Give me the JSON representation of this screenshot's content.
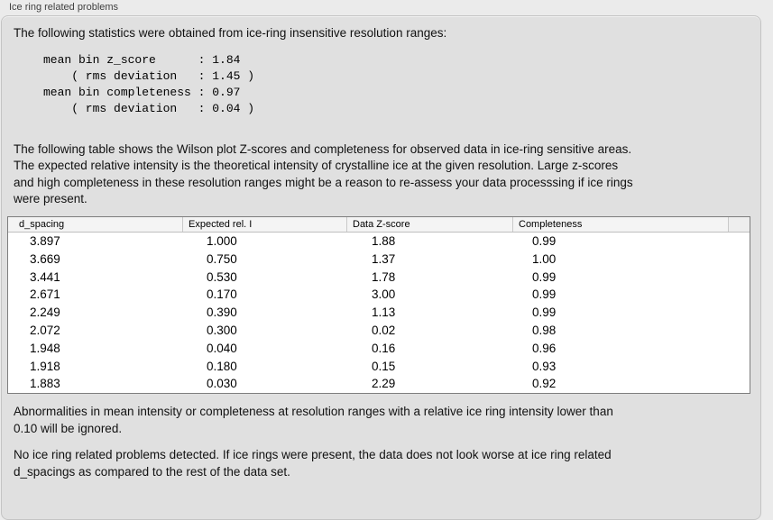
{
  "panel": {
    "title": "Ice ring related problems"
  },
  "intro": "The following statistics were obtained from ice-ring insensitive resolution ranges:",
  "stats_block": "mean bin z_score      : 1.84\n    ( rms deviation   : 1.45 )\nmean bin completeness : 0.97\n    ( rms deviation   : 0.04 )",
  "table_note": "The following table shows the Wilson plot Z-scores and completeness for observed data in ice-ring sensitive areas.\nThe expected relative intensity is the theoretical intensity of crystalline ice at the given resolution. Large z-scores\nand high completeness in these resolution ranges might be a reason to re-assess your data processsing if ice rings\nwere present.",
  "table": {
    "columns": [
      "d_spacing",
      "Expected rel. I",
      "Data Z-score",
      "Completeness"
    ],
    "rows": [
      [
        "3.897",
        "1.000",
        "1.88",
        "0.99"
      ],
      [
        "3.669",
        "0.750",
        "1.37",
        "1.00"
      ],
      [
        "3.441",
        "0.530",
        "1.78",
        "0.99"
      ],
      [
        "2.671",
        "0.170",
        "3.00",
        "0.99"
      ],
      [
        "2.249",
        "0.390",
        "1.13",
        "0.99"
      ],
      [
        "2.072",
        "0.300",
        "0.02",
        "0.98"
      ],
      [
        "1.948",
        "0.040",
        "0.16",
        "0.96"
      ],
      [
        "1.918",
        "0.180",
        "0.15",
        "0.93"
      ],
      [
        "1.883",
        "0.030",
        "2.29",
        "0.92"
      ]
    ]
  },
  "footnote": "Abnormalities in mean intensity or completeness at resolution ranges with a relative ice ring intensity lower than\n0.10 will be ignored.",
  "conclusion": "No ice ring related problems detected. If ice rings were present, the data does not look worse at ice ring related\nd_spacings as compared to the rest of the data set.",
  "colors": {
    "exterior_bg": "#ebebeb",
    "panel_bg": "#e0e0e0",
    "panel_border": "#c4c4c4",
    "table_border": "#7d7d7d",
    "header_bg": "#f4f4f4",
    "header_sep": "#c9c9c9",
    "text": "#111111",
    "title_text": "#3f3f3f"
  }
}
